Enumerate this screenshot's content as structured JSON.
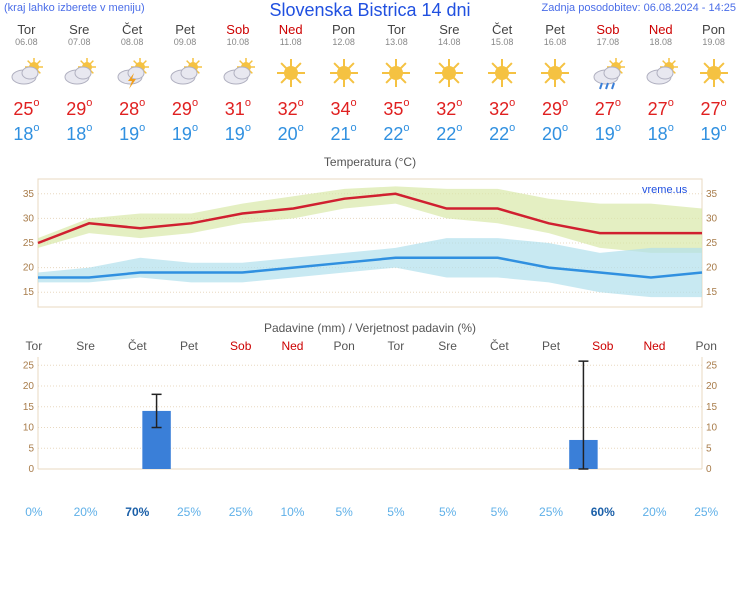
{
  "header": {
    "menu_hint": "(kraj lahko izberete v meniju)",
    "title": "Slovenska Bistrica 14 dni",
    "updated": "Zadnja posodobitev: 06.08.2024 - 14:25"
  },
  "days": [
    {
      "name": "Tor",
      "date": "06.08",
      "weekend": false,
      "icon": "cloud-sun",
      "high": 25,
      "low": 18,
      "prob": "0%",
      "prob_dark": false,
      "precip": 0,
      "err": 0
    },
    {
      "name": "Sre",
      "date": "07.08",
      "weekend": false,
      "icon": "cloud-sun",
      "high": 29,
      "low": 18,
      "prob": "20%",
      "prob_dark": false,
      "precip": 0,
      "err": 0
    },
    {
      "name": "Čet",
      "date": "08.08",
      "weekend": false,
      "icon": "cloud-storm",
      "high": 28,
      "low": 19,
      "prob": "70%",
      "prob_dark": true,
      "precip": 14,
      "err": 4
    },
    {
      "name": "Pet",
      "date": "09.08",
      "weekend": false,
      "icon": "cloud-sun",
      "high": 29,
      "low": 19,
      "prob": "25%",
      "prob_dark": false,
      "precip": 0,
      "err": 0
    },
    {
      "name": "Sob",
      "date": "10.08",
      "weekend": true,
      "icon": "cloud-sun",
      "high": 31,
      "low": 19,
      "prob": "25%",
      "prob_dark": false,
      "precip": 0,
      "err": 0
    },
    {
      "name": "Ned",
      "date": "11.08",
      "weekend": true,
      "icon": "sun",
      "high": 32,
      "low": 20,
      "prob": "10%",
      "prob_dark": false,
      "precip": 0,
      "err": 0
    },
    {
      "name": "Pon",
      "date": "12.08",
      "weekend": false,
      "icon": "sun",
      "high": 34,
      "low": 21,
      "prob": "5%",
      "prob_dark": false,
      "precip": 0,
      "err": 0
    },
    {
      "name": "Tor",
      "date": "13.08",
      "weekend": false,
      "icon": "sun",
      "high": 35,
      "low": 22,
      "prob": "5%",
      "prob_dark": false,
      "precip": 0,
      "err": 0
    },
    {
      "name": "Sre",
      "date": "14.08",
      "weekend": false,
      "icon": "sun",
      "high": 32,
      "low": 22,
      "prob": "5%",
      "prob_dark": false,
      "precip": 0,
      "err": 0
    },
    {
      "name": "Čet",
      "date": "15.08",
      "weekend": false,
      "icon": "sun",
      "high": 32,
      "low": 22,
      "prob": "5%",
      "prob_dark": false,
      "precip": 0,
      "err": 0
    },
    {
      "name": "Pet",
      "date": "16.08",
      "weekend": false,
      "icon": "sun",
      "high": 29,
      "low": 20,
      "prob": "25%",
      "prob_dark": false,
      "precip": 0,
      "err": 0
    },
    {
      "name": "Sob",
      "date": "17.08",
      "weekend": true,
      "icon": "cloud-rain",
      "high": 27,
      "low": 19,
      "prob": "60%",
      "prob_dark": true,
      "precip": 7,
      "err": 19
    },
    {
      "name": "Ned",
      "date": "18.08",
      "weekend": true,
      "icon": "sun-cloud",
      "high": 27,
      "low": 18,
      "prob": "20%",
      "prob_dark": false,
      "precip": 0,
      "err": 0
    },
    {
      "name": "Pon",
      "date": "19.08",
      "weekend": false,
      "icon": "sun",
      "high": 27,
      "low": 19,
      "prob": "25%",
      "prob_dark": false,
      "precip": 0,
      "err": 0
    }
  ],
  "temp_chart": {
    "title": "Temperatura (°C)",
    "watermark": "vreme.us",
    "ylim": [
      12,
      38
    ],
    "yticks": [
      15,
      20,
      25,
      30,
      35
    ],
    "high_band_top": [
      26,
      30,
      31,
      31,
      33,
      34.5,
      36,
      36.5,
      36,
      36,
      34,
      33,
      33,
      32
    ],
    "high_line": [
      25,
      29,
      28,
      29,
      31,
      32,
      34,
      35,
      32,
      32,
      29,
      27,
      27,
      27
    ],
    "high_band_bot": [
      24,
      27,
      26,
      27,
      29,
      30,
      32,
      33,
      30,
      29,
      27,
      24,
      23,
      23
    ],
    "low_band_top": [
      19,
      20,
      22,
      21,
      21,
      22,
      23,
      24,
      26,
      26,
      25,
      23,
      24,
      24
    ],
    "low_line": [
      18,
      18,
      19,
      19,
      19,
      20,
      21,
      22,
      22,
      22,
      20,
      19,
      18,
      19
    ],
    "low_band_bot": [
      17,
      17,
      18,
      17,
      17,
      18,
      19,
      20,
      18,
      18,
      17,
      15,
      14,
      14
    ],
    "colors": {
      "high_band": "#d9e8a8",
      "high_line": "#d02030",
      "low_band": "#b0e0ec",
      "low_line": "#3090e0",
      "grid": "#e8d8c0",
      "axis": "#a87c4a",
      "bg": "#ffffff"
    }
  },
  "precip_chart": {
    "title": "Padavine (mm) / Verjetnost padavin (%)",
    "ylim": [
      0,
      27
    ],
    "yticks": [
      0,
      5,
      10,
      15,
      20,
      25
    ],
    "bar_color": "#3a7fd8",
    "err_color": "#222"
  }
}
